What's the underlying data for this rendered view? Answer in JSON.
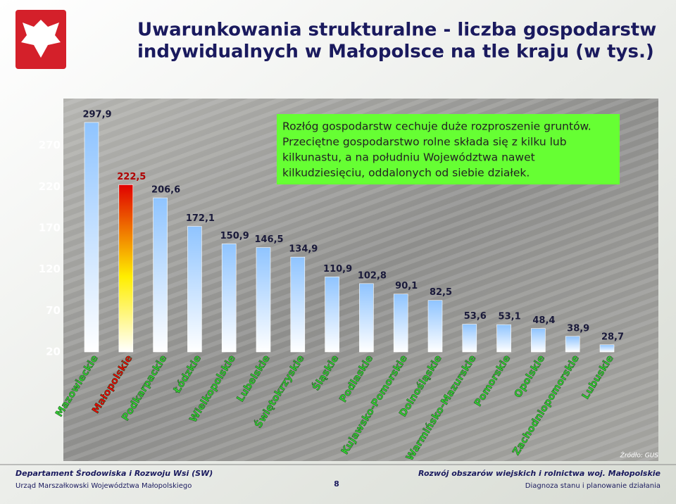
{
  "chart_data": {
    "type": "bar",
    "title": [
      "Uwarunkowania strukturalne - liczba gospodarstw",
      "indywidualnych w Małopolsce na tle kraju (w tys.)"
    ],
    "categories": [
      "Mazowieckie",
      "Małopolskie",
      "Podkarpackie",
      "Łódzkie",
      "Wielkopolskie",
      "Lubelskie",
      "Świętokrzyskie",
      "Śląskie",
      "Podlaskie",
      "Kujawsko-Pomorskie",
      "Dolnośląskie",
      "Warmińsko-Mazurskie",
      "Pomorskie",
      "Opolskie",
      "Zachodniopomorskie",
      "Lubuskie"
    ],
    "values": [
      297.9,
      222.5,
      206.6,
      172.1,
      150.9,
      146.5,
      134.9,
      110.9,
      102.8,
      90.1,
      82.5,
      53.6,
      53.1,
      48.4,
      38.9,
      28.7
    ],
    "value_labels": [
      "297,9",
      "222,5",
      "206,6",
      "172,1",
      "150,9",
      "146,5",
      "134,9",
      "110,9",
      "102,8",
      "90,1",
      "82,5",
      "53,6",
      "53,1",
      "48,4",
      "38,9",
      "28,7"
    ],
    "colors": [
      "#8fc4ff",
      "#e00000",
      "#8fc4ff",
      "#8fc4ff",
      "#8fc4ff",
      "#8fc4ff",
      "#8fc4ff",
      "#8fc4ff",
      "#8fc4ff",
      "#8fc4ff",
      "#8fc4ff",
      "#8fc4ff",
      "#8fc4ff",
      "#8fc4ff",
      "#8fc4ff",
      "#8fc4ff"
    ],
    "label_colors": [
      "#33cc33",
      "#ee0000",
      "#33cc33",
      "#33cc33",
      "#33cc33",
      "#33cc33",
      "#33cc33",
      "#33cc33",
      "#33cc33",
      "#33cc33",
      "#33cc33",
      "#33cc33",
      "#33cc33",
      "#33cc33",
      "#33cc33",
      "#33cc33"
    ],
    "ylim": [
      20,
      320
    ],
    "yticks": [
      20,
      70,
      120,
      170,
      220,
      270
    ],
    "annotation": [
      "Rozłóg gospodarstw cechuje duże rozproszenie gruntów.",
      "Przeciętne gospodarstwo rolne składa się z kilku lub",
      "kilkunastu, a na południu Województwa nawet",
      "kilkudziesięciu,  oddalonych od siebie działek."
    ],
    "source": "Źródło: GUS"
  },
  "footer": {
    "left_title": "Departament Środowiska i Rozwoju Wsi (SW)",
    "left_sub": "Urząd Marszałkowski Województwa Małopolskiego",
    "page": "8",
    "right_title": "Rozwój obszarów wiejskich i rolnictwa woj. Małopolskie",
    "right_sub": "Diagnoza stanu i planowanie działania"
  }
}
